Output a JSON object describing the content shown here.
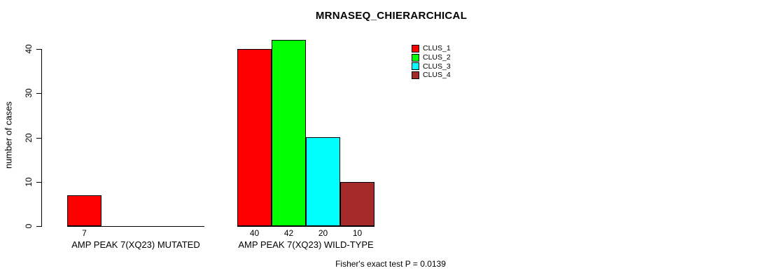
{
  "title": "MRNASEQ_CHIERARCHICAL",
  "chart_data": {
    "type": "bar",
    "title": "MRNASEQ_CHIERARCHICAL",
    "xlabel": "",
    "ylabel": "number of cases",
    "yticks": [
      0,
      10,
      20,
      30,
      40
    ],
    "ylim": [
      0,
      42.5
    ],
    "grid": false,
    "legend_position": "top-right",
    "legend": [
      {
        "label": "CLUS_1",
        "color": "#ff0000"
      },
      {
        "label": "CLUS_2",
        "color": "#00ff00"
      },
      {
        "label": "CLUS_3",
        "color": "#00ffff"
      },
      {
        "label": "CLUS_4",
        "color": "#a52a2a"
      }
    ],
    "groups": [
      {
        "label": "AMP PEAK 7(XQ23) MUTATED",
        "bars": [
          {
            "series": "CLUS_1",
            "value": 7,
            "label": "7",
            "color": "#ff0000"
          }
        ]
      },
      {
        "label": "AMP PEAK 7(XQ23) WILD-TYPE",
        "bars": [
          {
            "series": "CLUS_1",
            "value": 40,
            "label": "40",
            "color": "#ff0000"
          },
          {
            "series": "CLUS_2",
            "value": 42,
            "label": "42",
            "color": "#00ff00"
          },
          {
            "series": "CLUS_3",
            "value": 20,
            "label": "20",
            "color": "#00ffff"
          },
          {
            "series": "CLUS_4",
            "value": 10,
            "label": "10",
            "color": "#a52a2a"
          }
        ]
      }
    ],
    "annotation": "Fisher's exact test P = 0.0139",
    "colors": {
      "background": "#ffffff",
      "axis": "#000000",
      "text": "#000000"
    }
  }
}
